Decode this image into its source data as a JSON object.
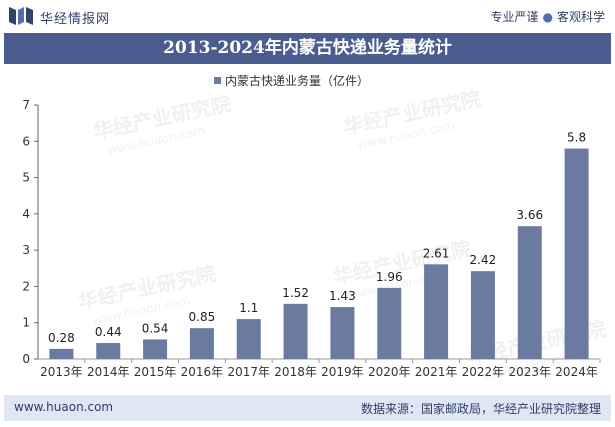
{
  "header": {
    "brand": "华经情报网",
    "slogan_left": "专业严谨",
    "slogan_right": "客观科学"
  },
  "title_bar": {
    "title": "2013-2024年内蒙古快递业务量统计"
  },
  "watermark": {
    "text": "华经产业研究院",
    "url": "www.huaon.com"
  },
  "footer": {
    "url": "www.huaon.com",
    "source": "数据来源：国家邮政局，华经产业研究院整理"
  },
  "colors": {
    "bar": "#6b7aa1",
    "title_bg": "#4a5d8e",
    "footer_bg": "#dfe7f4",
    "brand": "#34426a"
  },
  "chart_data": {
    "type": "bar",
    "title": "",
    "xlabel": "",
    "ylabel": "",
    "ylim": [
      0,
      7
    ],
    "yticks": [
      0,
      1,
      2,
      3,
      4,
      5,
      6,
      7
    ],
    "grid": false,
    "legend_position": "top-center",
    "categories": [
      "2013年",
      "2014年",
      "2015年",
      "2016年",
      "2017年",
      "2018年",
      "2019年",
      "2020年",
      "2021年",
      "2022年",
      "2023年",
      "2024年"
    ],
    "series": [
      {
        "name": "内蒙古快递业务量（亿件）",
        "values": [
          0.28,
          0.44,
          0.54,
          0.85,
          1.1,
          1.52,
          1.43,
          1.96,
          2.61,
          2.42,
          3.66,
          5.8
        ],
        "labels": [
          "0.28",
          "0.44",
          "0.54",
          "0.85",
          "1.1",
          "1.52",
          "1.43",
          "1.96",
          "2.61",
          "2.42",
          "3.66",
          "5.8"
        ]
      }
    ]
  }
}
